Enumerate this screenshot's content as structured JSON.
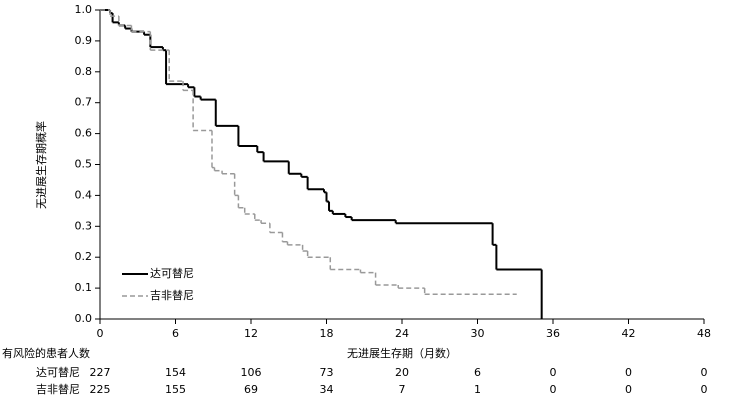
{
  "chart_data": {
    "type": "step",
    "y_label": "无进展生存期概率",
    "x_label": "无进展生存期（月数）",
    "xlim": [
      0,
      48
    ],
    "xticks": [
      0,
      6,
      12,
      18,
      24,
      30,
      36,
      42,
      48
    ],
    "ylim": [
      0,
      1
    ],
    "yticks": [
      {
        "value": 0,
        "label": "0.0"
      },
      0.1,
      0.2,
      0.3,
      0.4,
      0.5,
      0.6,
      0.7,
      0.8,
      0.9,
      {
        "value": 1,
        "label": "1.0"
      }
    ],
    "legend": "lower-left",
    "series": [
      {
        "name": "达可替尼",
        "color": "#000000",
        "dash": false,
        "x": [
          0,
          0.8,
          1,
          1.5,
          2,
          2.5,
          3.5,
          4,
          5,
          5.25,
          7,
          7.5,
          8,
          9.2,
          11,
          12.5,
          13,
          15,
          16,
          16.5,
          17.8,
          18,
          18.2,
          18.5,
          19.5,
          20,
          23.5,
          31.2,
          31.5,
          35.1
        ],
        "values": [
          1.0,
          0.99,
          0.96,
          0.95,
          0.94,
          0.93,
          0.92,
          0.88,
          0.87,
          0.76,
          0.75,
          0.72,
          0.71,
          0.625,
          0.56,
          0.54,
          0.51,
          0.47,
          0.46,
          0.42,
          0.41,
          0.38,
          0.35,
          0.34,
          0.33,
          0.32,
          0.31,
          0.24,
          0.16,
          0.0
        ]
      },
      {
        "name": "吉非替尼",
        "color": "#999999",
        "dash": true,
        "x": [
          0,
          0.8,
          1.5,
          2.5,
          4,
          5.5,
          6.6,
          7.4,
          8.9,
          9.1,
          9.7,
          10.7,
          11.0,
          11.5,
          12.3,
          12.8,
          13.5,
          14.5,
          14.9,
          16.1,
          16.5,
          18.3,
          20.7,
          21.9,
          23.7,
          25.8,
          33.1
        ],
        "values": [
          1.0,
          0.98,
          0.95,
          0.93,
          0.87,
          0.77,
          0.74,
          0.61,
          0.49,
          0.48,
          0.47,
          0.4,
          0.36,
          0.34,
          0.32,
          0.31,
          0.28,
          0.25,
          0.24,
          0.22,
          0.2,
          0.16,
          0.15,
          0.11,
          0.1,
          0.08,
          0.08
        ]
      }
    ],
    "risk_table": {
      "title": "有风险的患者人数",
      "rows": [
        {
          "name": "达可替尼",
          "values": [
            227,
            154,
            106,
            73,
            20,
            6,
            0,
            0,
            0
          ]
        },
        {
          "name": "吉非替尼",
          "values": [
            225,
            155,
            69,
            34,
            7,
            1,
            0,
            0,
            0
          ]
        }
      ]
    }
  }
}
